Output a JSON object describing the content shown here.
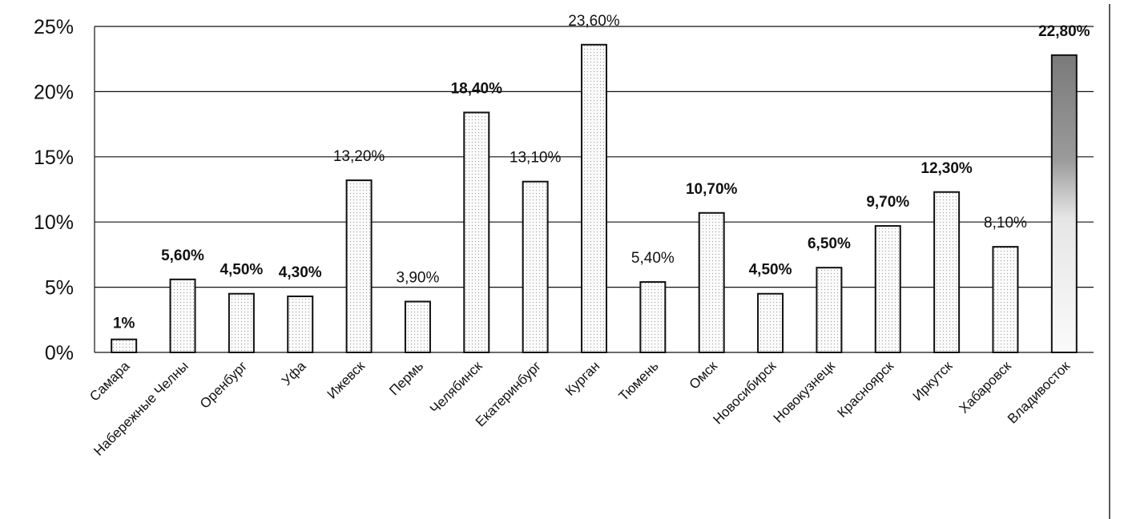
{
  "chart_data": {
    "type": "bar",
    "title": "",
    "xlabel": "",
    "ylabel": "",
    "ylim": [
      0,
      25
    ],
    "grid": true,
    "yticks": [
      "0%",
      "5%",
      "10%",
      "15%",
      "20%",
      "25%"
    ],
    "categories": [
      "Самара",
      "Набережные Челны",
      "Оренбург",
      "Уфа",
      "Ижевск",
      "Пермь",
      "Челябинск",
      "Екатеринбург",
      "Курган",
      "Тюмень",
      "Омск",
      "Новосибирск",
      "Новокузнецк",
      "Красноярск",
      "Иркутск",
      "Хабаровск",
      "Владивосток"
    ],
    "values": [
      1,
      5.6,
      4.5,
      4.3,
      13.2,
      3.9,
      18.4,
      13.1,
      23.6,
      5.4,
      10.7,
      4.5,
      6.5,
      9.7,
      12.3,
      8.1,
      22.8
    ],
    "labels": [
      "1%",
      "5,60%",
      "4,50%",
      "4,30%",
      "13,20%",
      "3,90%",
      "18,40%",
      "13,10%",
      "23,60%",
      "5,40%",
      "10,70%",
      "4,50%",
      "6,50%",
      "9,70%",
      "12,30%",
      "8,10%",
      "22,80%"
    ],
    "label_bold": [
      true,
      true,
      true,
      true,
      false,
      false,
      true,
      false,
      false,
      false,
      true,
      true,
      true,
      true,
      true,
      false,
      true
    ],
    "colors": {
      "bar_fill": "#f2f2f2",
      "bar_highlight": "#8a8a8a",
      "bar_stroke": "#111111",
      "grid": "#111111"
    }
  }
}
